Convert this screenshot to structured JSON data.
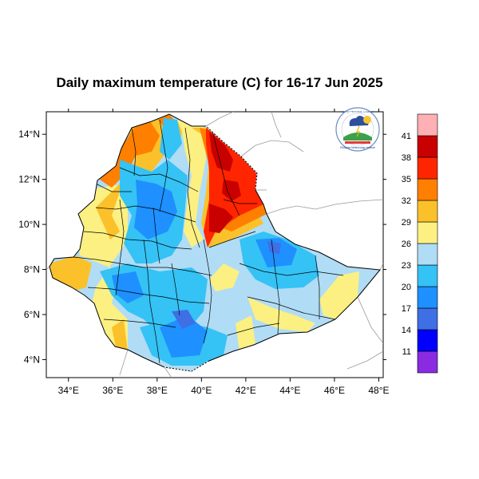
{
  "title": "Daily maximum temperature (C) for 16-17 Jun 2025",
  "map": {
    "lon_range": [
      33,
      48.2
    ],
    "lat_range": [
      3.2,
      15
    ],
    "lon_ticks": [
      34,
      36,
      38,
      40,
      42,
      44,
      46,
      48
    ],
    "lat_ticks": [
      4,
      6,
      8,
      10,
      12,
      14
    ],
    "lon_tick_labels": [
      "34°E",
      "36°E",
      "38°E",
      "40°E",
      "42°E",
      "44°E",
      "46°E",
      "48°E"
    ],
    "lat_tick_labels": [
      "4°N",
      "6°N",
      "8°N",
      "10°N",
      "12°N",
      "14°N"
    ],
    "country_outline_color": "#000000",
    "neighbor_border_color": "#9a9a9a"
  },
  "colorbar": {
    "levels": [
      11,
      14,
      17,
      20,
      23,
      26,
      29,
      32,
      35,
      38,
      41
    ],
    "labels": [
      "11",
      "14",
      "17",
      "20",
      "23",
      "26",
      "29",
      "32",
      "35",
      "38",
      "41"
    ],
    "colors": [
      "#8a2be2",
      "#0000ff",
      "#3f6fe4",
      "#1e90ff",
      "#35c2f5",
      "#b0dcf5",
      "#fbf081",
      "#fbc12a",
      "#ff7f00",
      "#ff2500",
      "#c80000",
      "#ffb0b4"
    ]
  },
  "logo": {
    "name": "meteorology-agency-logo",
    "text_top": "ኢትዮጵያ ሜትዮሮሎጂ ኢንስቲትዩት",
    "text_bottom": "Ethiopian Meteorology Institute"
  }
}
